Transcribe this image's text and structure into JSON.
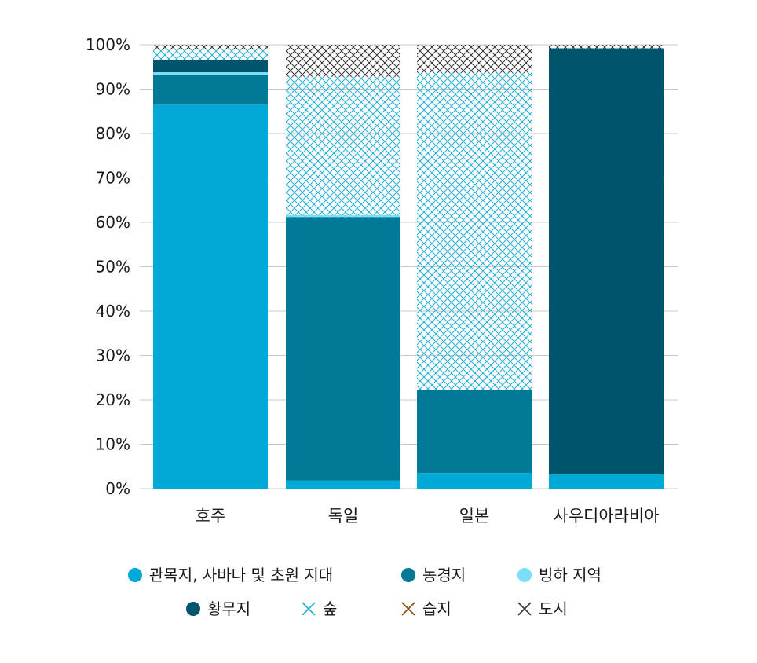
{
  "chart_data": {
    "type": "bar",
    "stacked": true,
    "categories": [
      "호주",
      "독일",
      "일본",
      "사우디아라비아"
    ],
    "series": [
      {
        "name": "관목지, 사바나 및 초원 지대",
        "values": [
          86.5,
          1.8,
          3.5,
          3.2
        ],
        "color": "#00a9d6",
        "pattern": "solid"
      },
      {
        "name": "농경지",
        "values": [
          6.8,
          59.4,
          18.8,
          0
        ],
        "color": "#007a96",
        "pattern": "solid"
      },
      {
        "name": "빙하 지역",
        "values": [
          0.5,
          0.4,
          0,
          0
        ],
        "color": "#7be0f7",
        "pattern": "solid"
      },
      {
        "name": "황무지",
        "values": [
          2.7,
          0,
          0,
          96.0
        ],
        "color": "#00546b",
        "pattern": "solid"
      },
      {
        "name": "숲",
        "values": [
          2.5,
          31.2,
          71.4,
          0
        ],
        "color": "#22b0d6",
        "pattern": "hatch"
      },
      {
        "name": "습지",
        "values": [
          0,
          0,
          0,
          0
        ],
        "color": "#8a4a10",
        "pattern": "hatch"
      },
      {
        "name": "도시",
        "values": [
          1.0,
          7.2,
          6.3,
          0.8
        ],
        "color": "#333333",
        "pattern": "hatch"
      }
    ],
    "y_ticks": [
      "0%",
      "10%",
      "20%",
      "30%",
      "40%",
      "50%",
      "60%",
      "70%",
      "80%",
      "90%",
      "100%"
    ],
    "ylim": [
      0,
      100
    ],
    "legend_position": "bottom",
    "grid": true,
    "title": "",
    "xlabel": "",
    "ylabel": ""
  }
}
